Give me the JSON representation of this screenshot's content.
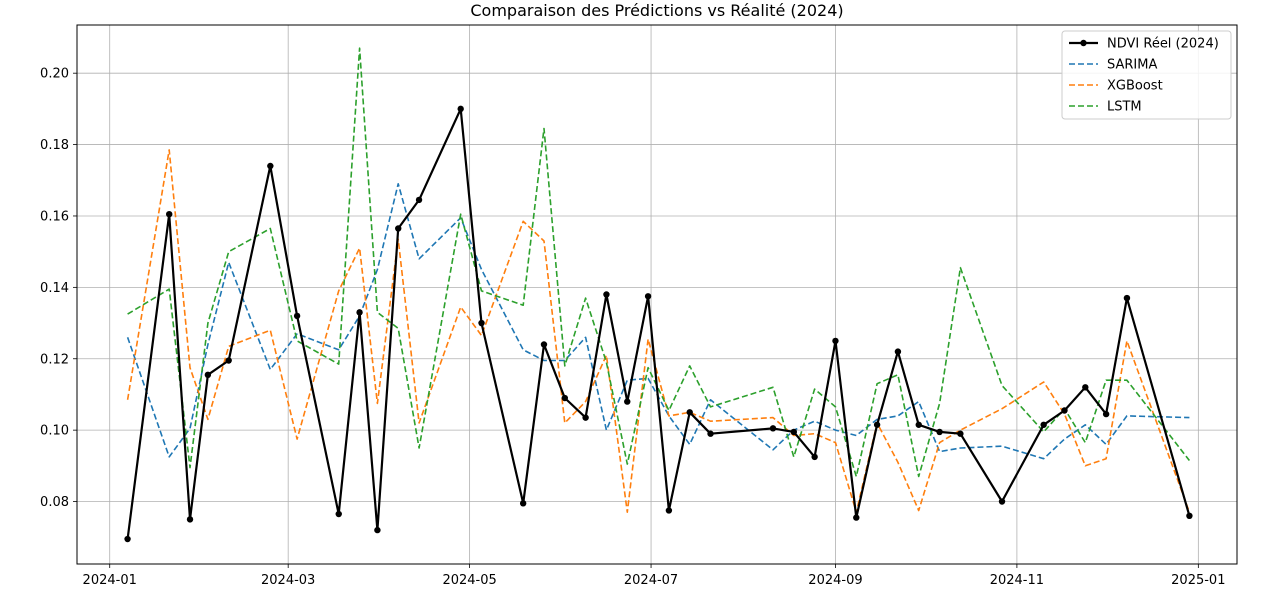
{
  "chart_data": {
    "type": "line",
    "title": "Comparaison des Prédictions vs Réalité (2024)",
    "xlabel": "",
    "ylabel": "",
    "xlim": [
      "2023-12-21",
      "2025-01-14"
    ],
    "ylim": [
      0.0625,
      0.2135
    ],
    "x_ticks": [
      "2024-01-01",
      "2024-03-01",
      "2024-05-01",
      "2024-07-01",
      "2024-09-01",
      "2024-11-01",
      "2025-01-01"
    ],
    "x_tick_labels": [
      "2024-01",
      "2024-03",
      "2024-05",
      "2024-07",
      "2024-09",
      "2024-11",
      "2025-01"
    ],
    "y_ticks": [
      0.08,
      0.1,
      0.12,
      0.14,
      0.16,
      0.18,
      0.2
    ],
    "y_tick_labels": [
      "0.08",
      "0.10",
      "0.12",
      "0.14",
      "0.16",
      "0.18",
      "0.20"
    ],
    "grid": true,
    "legend_position": "top-right",
    "series": [
      {
        "name": "NDVI Réel (2024)",
        "color": "#000000",
        "style": "solid-markers",
        "x": [
          "2024-01-07",
          "2024-01-21",
          "2024-01-28",
          "2024-02-03",
          "2024-02-10",
          "2024-02-24",
          "2024-03-04",
          "2024-03-18",
          "2024-03-25",
          "2024-03-31",
          "2024-04-07",
          "2024-04-14",
          "2024-04-28",
          "2024-05-05",
          "2024-05-19",
          "2024-05-26",
          "2024-06-02",
          "2024-06-09",
          "2024-06-16",
          "2024-06-23",
          "2024-06-30",
          "2024-07-07",
          "2024-07-14",
          "2024-07-21",
          "2024-08-11",
          "2024-08-18",
          "2024-08-25",
          "2024-09-01",
          "2024-09-08",
          "2024-09-15",
          "2024-09-22",
          "2024-09-29",
          "2024-10-06",
          "2024-10-13",
          "2024-10-27",
          "2024-11-10",
          "2024-11-17",
          "2024-11-24",
          "2024-12-01",
          "2024-12-08",
          "2024-12-29"
        ],
        "y": [
          0.0695,
          0.1605,
          0.075,
          0.1155,
          0.1195,
          0.174,
          0.132,
          0.0765,
          0.133,
          0.072,
          0.1565,
          0.1645,
          0.19,
          0.13,
          0.0795,
          0.124,
          0.109,
          0.1035,
          0.138,
          0.108,
          0.1375,
          0.0775,
          0.105,
          0.099,
          0.1005,
          0.0995,
          0.0925,
          0.125,
          0.0755,
          0.1015,
          0.122,
          0.1015,
          0.0995,
          0.099,
          0.08,
          0.1015,
          0.1055,
          0.112,
          0.1045,
          0.137,
          0.076
        ]
      },
      {
        "name": "SARIMA",
        "color": "#1f77b4",
        "style": "dashed",
        "x": [
          "2024-01-07",
          "2024-01-21",
          "2024-01-28",
          "2024-02-03",
          "2024-02-10",
          "2024-02-24",
          "2024-03-04",
          "2024-03-18",
          "2024-03-25",
          "2024-03-31",
          "2024-04-07",
          "2024-04-14",
          "2024-04-28",
          "2024-05-05",
          "2024-05-19",
          "2024-05-26",
          "2024-06-02",
          "2024-06-09",
          "2024-06-16",
          "2024-06-23",
          "2024-06-30",
          "2024-07-07",
          "2024-07-14",
          "2024-07-21",
          "2024-08-11",
          "2024-08-18",
          "2024-08-25",
          "2024-09-01",
          "2024-09-08",
          "2024-09-15",
          "2024-09-22",
          "2024-09-29",
          "2024-10-06",
          "2024-10-13",
          "2024-10-27",
          "2024-11-10",
          "2024-11-17",
          "2024-11-24",
          "2024-12-01",
          "2024-12-08",
          "2024-12-29"
        ],
        "y": [
          0.126,
          0.0925,
          0.1005,
          0.124,
          0.147,
          0.117,
          0.127,
          0.1225,
          0.132,
          0.145,
          0.169,
          0.148,
          0.1595,
          0.145,
          0.1225,
          0.1195,
          0.1195,
          0.126,
          0.1,
          0.114,
          0.1145,
          0.104,
          0.096,
          0.1085,
          0.0945,
          0.1,
          0.1025,
          0.1,
          0.0985,
          0.103,
          0.104,
          0.108,
          0.094,
          0.095,
          0.0955,
          0.092,
          0.0975,
          0.1015,
          0.096,
          0.104,
          0.1035
        ]
      },
      {
        "name": "XGBoost",
        "color": "#ff7f0e",
        "style": "dashed",
        "x": [
          "2024-01-07",
          "2024-01-21",
          "2024-01-28",
          "2024-02-03",
          "2024-02-10",
          "2024-02-24",
          "2024-03-04",
          "2024-03-18",
          "2024-03-25",
          "2024-03-31",
          "2024-04-07",
          "2024-04-14",
          "2024-04-28",
          "2024-05-05",
          "2024-05-19",
          "2024-05-26",
          "2024-06-02",
          "2024-06-09",
          "2024-06-16",
          "2024-06-23",
          "2024-06-30",
          "2024-07-07",
          "2024-07-14",
          "2024-07-21",
          "2024-08-11",
          "2024-08-18",
          "2024-08-25",
          "2024-09-01",
          "2024-09-08",
          "2024-09-15",
          "2024-09-22",
          "2024-09-29",
          "2024-10-06",
          "2024-10-13",
          "2024-10-27",
          "2024-11-10",
          "2024-11-17",
          "2024-11-24",
          "2024-12-01",
          "2024-12-08",
          "2024-12-29"
        ],
        "y": [
          0.1085,
          0.1785,
          0.1175,
          0.103,
          0.1235,
          0.128,
          0.0975,
          0.139,
          0.151,
          0.1075,
          0.1535,
          0.102,
          0.1345,
          0.1265,
          0.1585,
          0.153,
          0.102,
          0.108,
          0.121,
          0.077,
          0.1255,
          0.104,
          0.105,
          0.1025,
          0.1035,
          0.0985,
          0.099,
          0.0965,
          0.077,
          0.102,
          0.091,
          0.0775,
          0.0965,
          0.1,
          0.106,
          0.1135,
          0.1045,
          0.09,
          0.092,
          0.125,
          0.077
        ]
      },
      {
        "name": "LSTM",
        "color": "#2ca02c",
        "style": "dashed",
        "x": [
          "2024-01-07",
          "2024-01-21",
          "2024-01-28",
          "2024-02-03",
          "2024-02-10",
          "2024-02-24",
          "2024-03-04",
          "2024-03-18",
          "2024-03-25",
          "2024-03-31",
          "2024-04-07",
          "2024-04-14",
          "2024-04-28",
          "2024-05-05",
          "2024-05-19",
          "2024-05-26",
          "2024-06-02",
          "2024-06-09",
          "2024-06-16",
          "2024-06-23",
          "2024-06-30",
          "2024-07-07",
          "2024-07-14",
          "2024-07-21",
          "2024-08-11",
          "2024-08-18",
          "2024-08-25",
          "2024-09-01",
          "2024-09-08",
          "2024-09-15",
          "2024-09-22",
          "2024-09-29",
          "2024-10-06",
          "2024-10-13",
          "2024-10-27",
          "2024-11-10",
          "2024-11-17",
          "2024-11-24",
          "2024-12-01",
          "2024-12-08",
          "2024-12-29"
        ],
        "y": [
          0.1325,
          0.1395,
          0.0895,
          0.13,
          0.15,
          0.1565,
          0.125,
          0.1185,
          0.207,
          0.133,
          0.1285,
          0.095,
          0.1605,
          0.139,
          0.135,
          0.1845,
          0.118,
          0.137,
          0.119,
          0.0905,
          0.1175,
          0.1055,
          0.118,
          0.1065,
          0.112,
          0.0925,
          0.1115,
          0.1065,
          0.087,
          0.113,
          0.1155,
          0.087,
          0.1075,
          0.1455,
          0.1125,
          0.0995,
          0.106,
          0.0965,
          0.114,
          0.114,
          0.0915
        ]
      }
    ]
  }
}
